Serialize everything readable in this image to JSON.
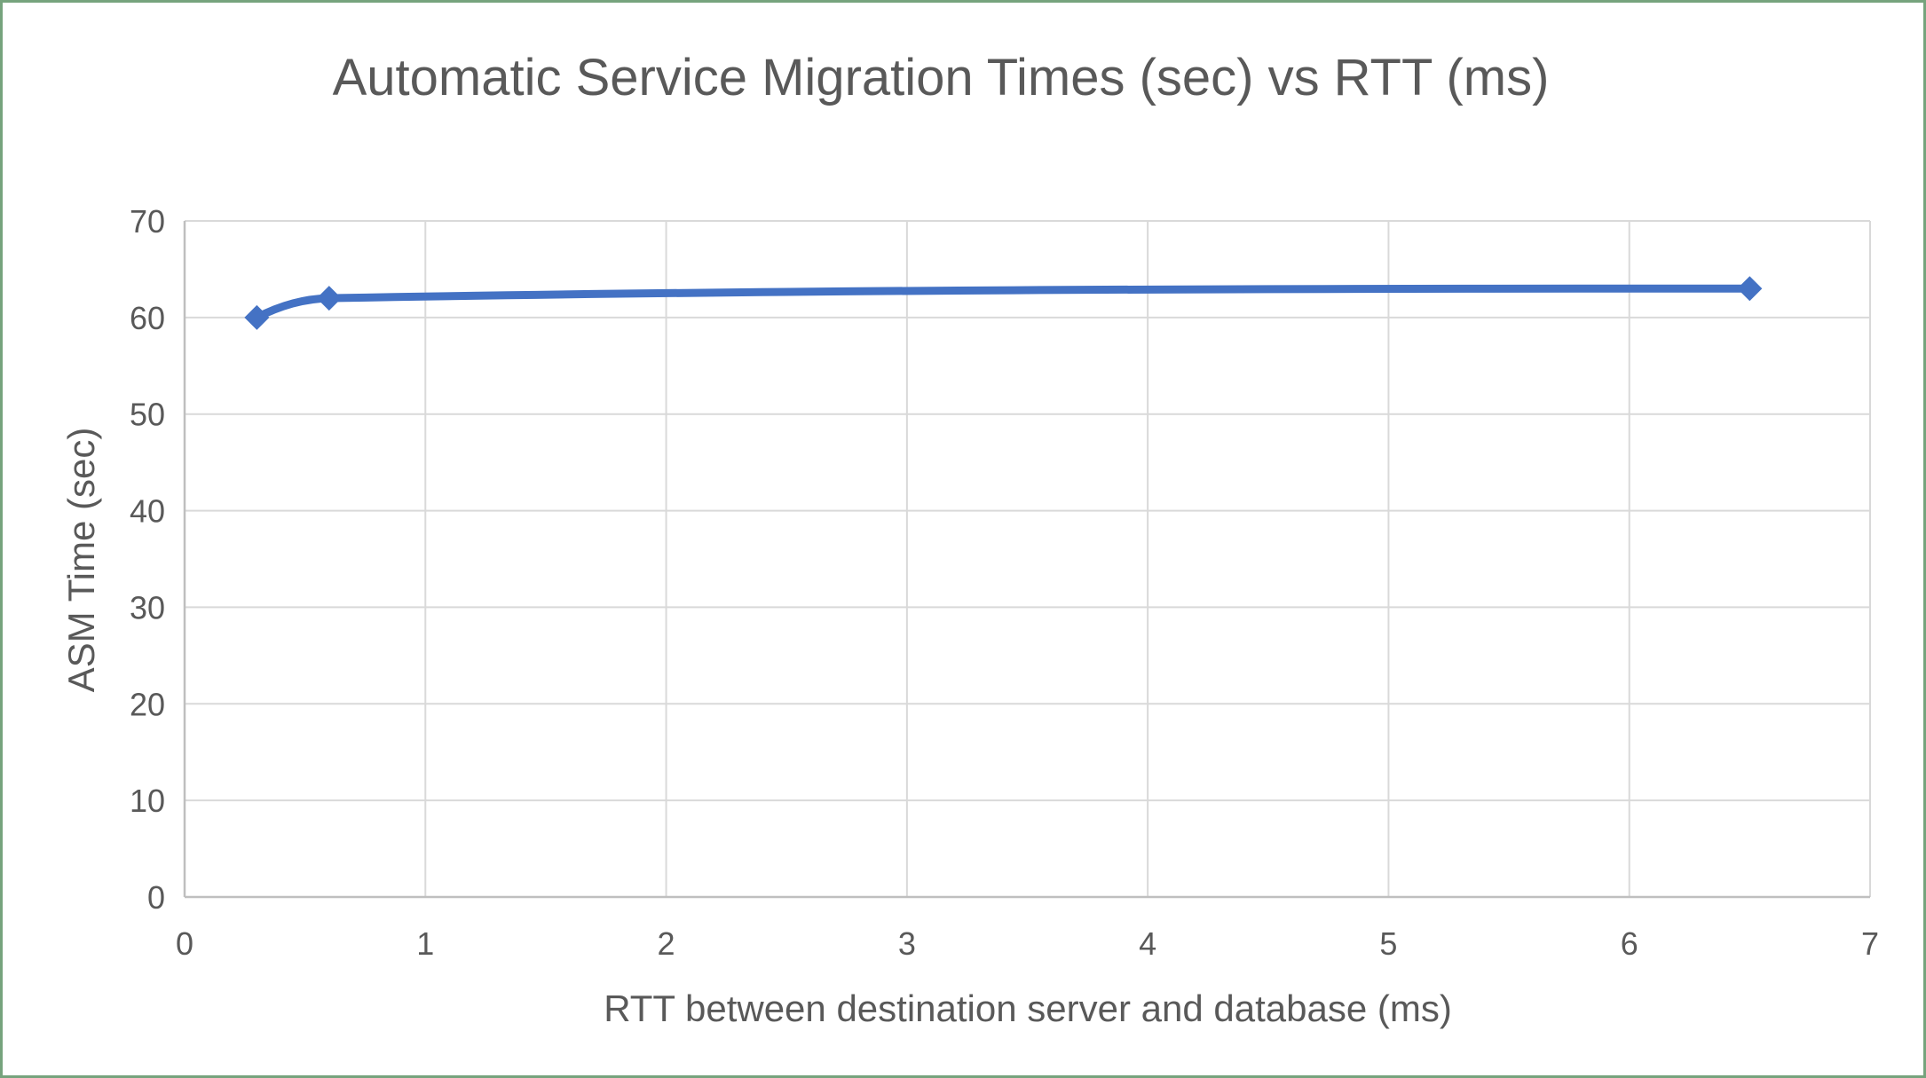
{
  "frame": {
    "border_color": "#76a37d",
    "background_color": "#ffffff"
  },
  "chart_data": {
    "type": "line",
    "title": "Automatic Service Migration Times (sec) vs RTT (ms)",
    "xlabel": "RTT between destination server and database (ms)",
    "ylabel": "ASM Time (sec)",
    "series": [
      {
        "name": "ASM Time",
        "x": [
          0.3,
          0.6,
          6.5
        ],
        "y": [
          60,
          62,
          63
        ]
      }
    ],
    "xlim": [
      0,
      7
    ],
    "ylim": [
      0,
      70
    ],
    "x_ticks": [
      0,
      1,
      2,
      3,
      4,
      5,
      6,
      7
    ],
    "y_ticks": [
      0,
      10,
      20,
      30,
      40,
      50,
      60,
      70
    ],
    "grid": true,
    "legend": false,
    "smooth_line": true,
    "marker": "diamond",
    "colors": {
      "series": "#4472C4",
      "text": "#595959",
      "gridline": "#D9D9D9",
      "axis_line": "#BFBFBF"
    }
  }
}
